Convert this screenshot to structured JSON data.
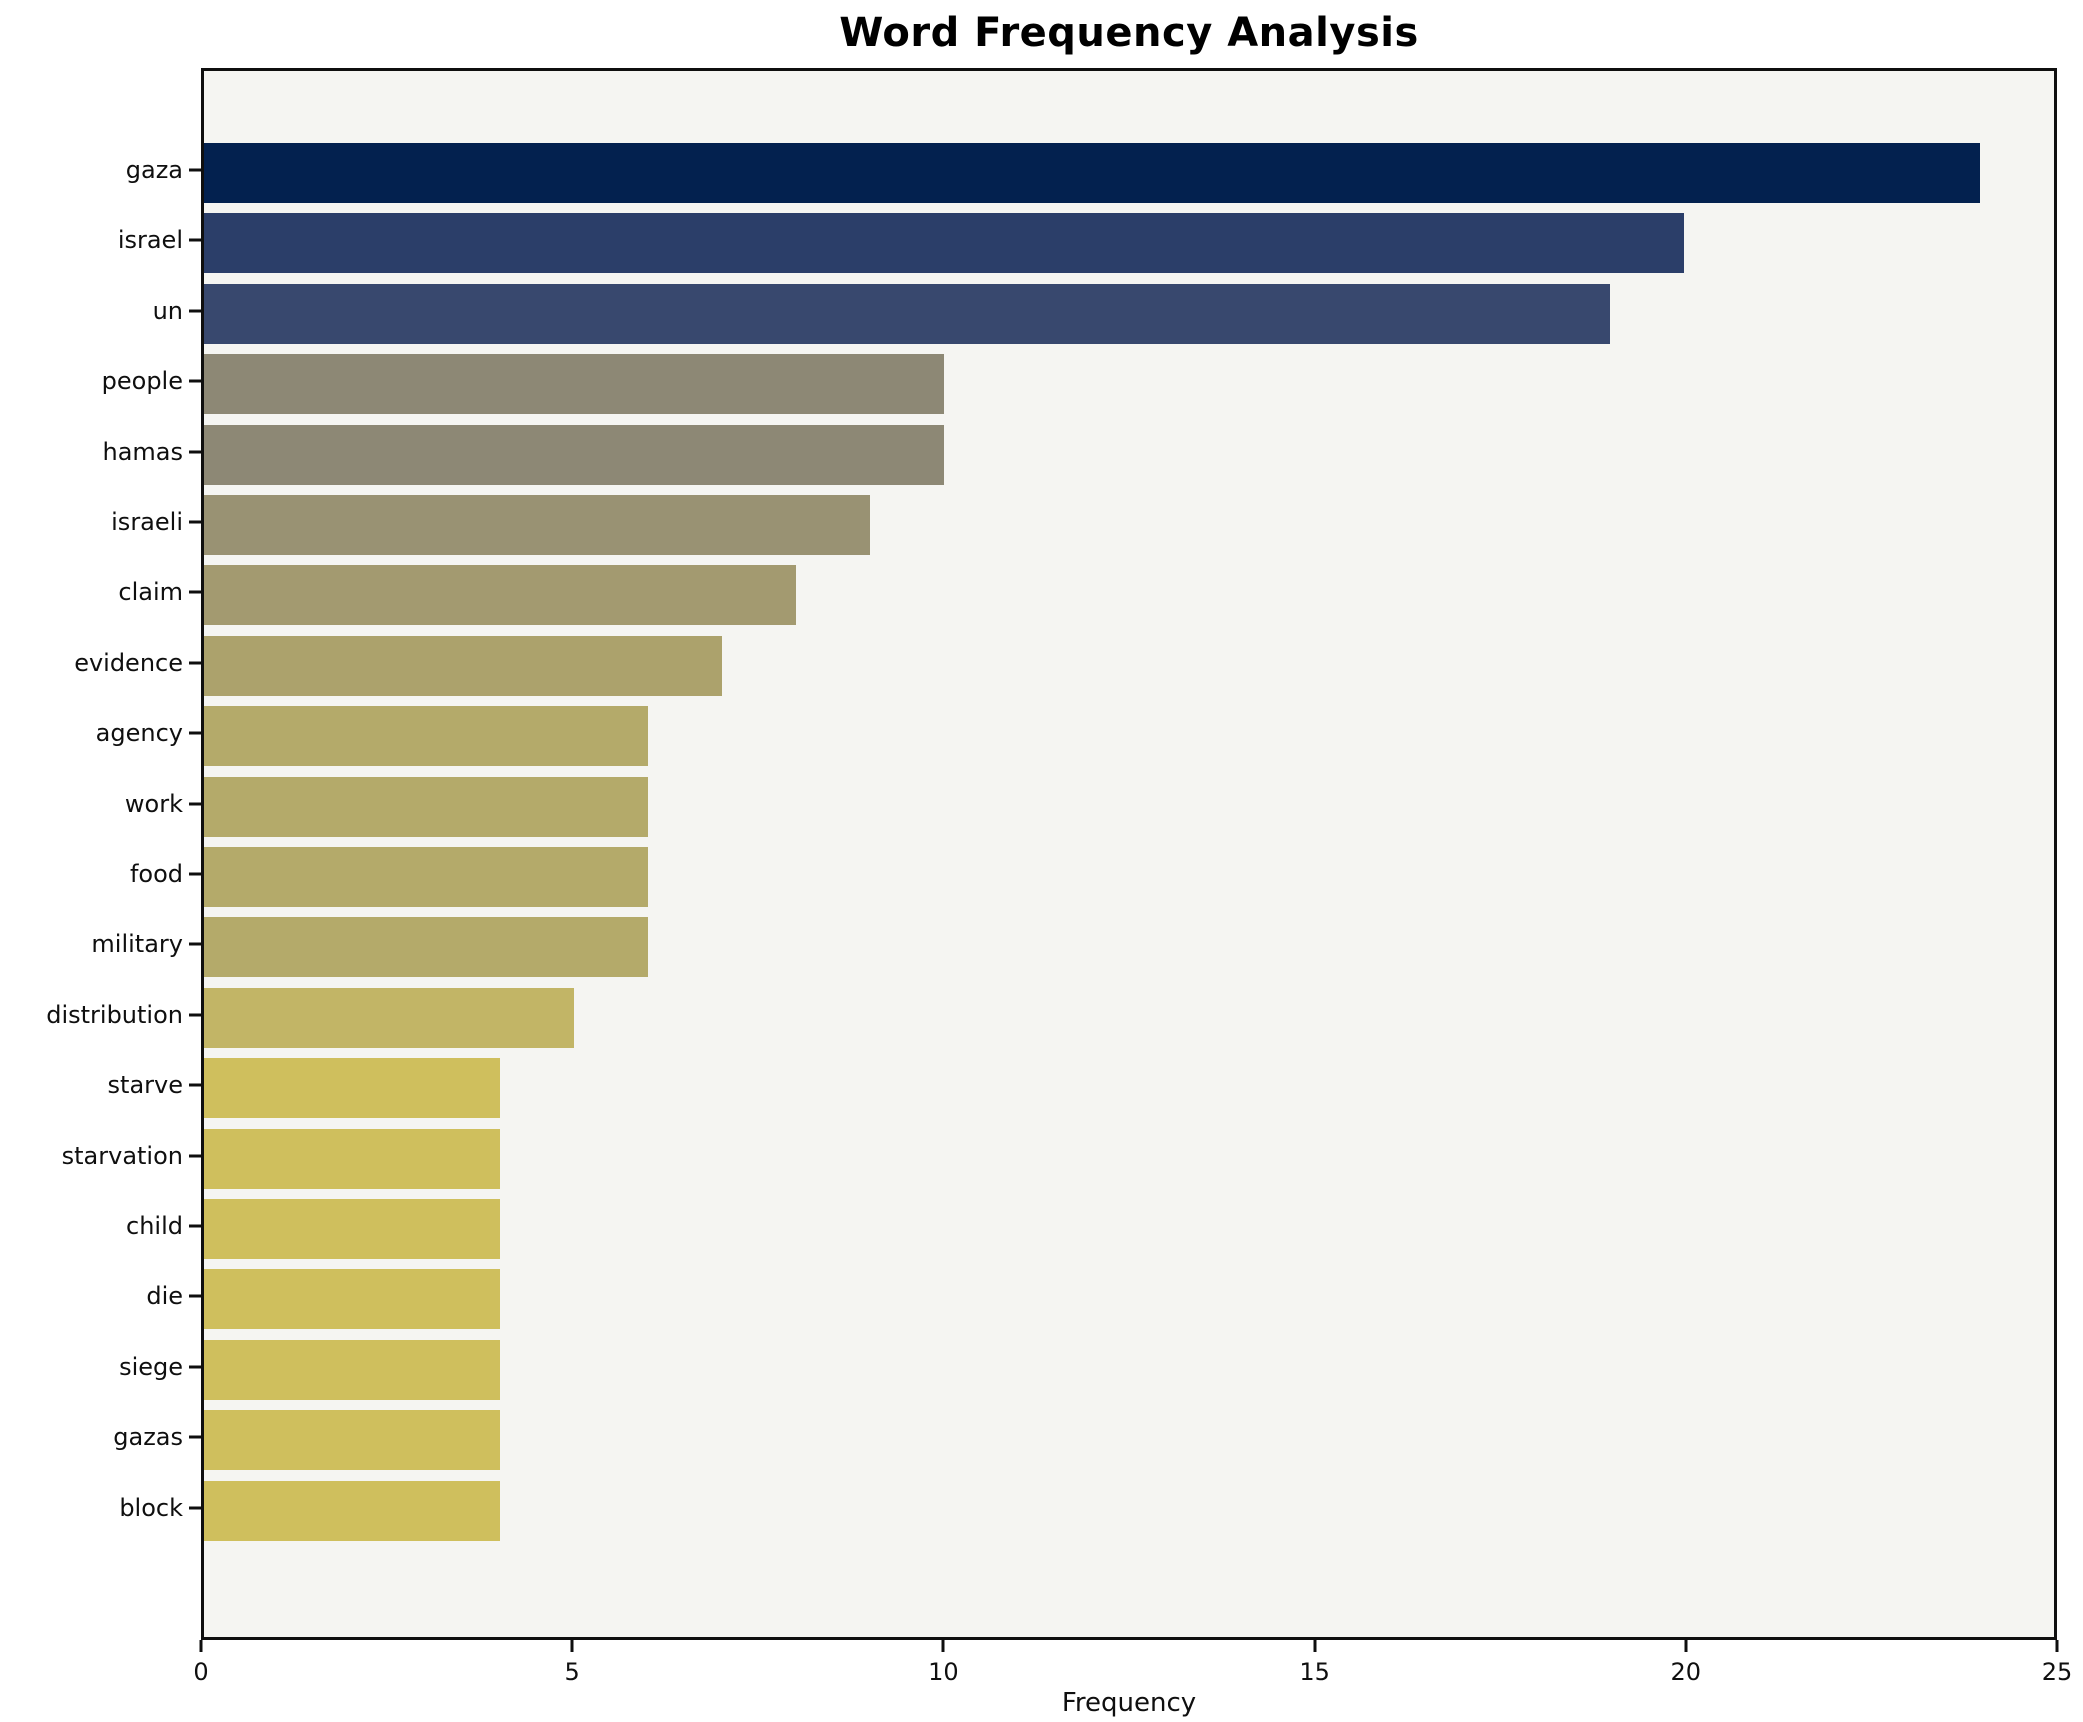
{
  "chart_data": {
    "type": "bar",
    "orientation": "horizontal",
    "title": "Word Frequency Analysis",
    "xlabel": "Frequency",
    "ylabel": "",
    "xlim": [
      0,
      25
    ],
    "xticks": [
      0,
      5,
      10,
      15,
      20,
      25
    ],
    "grid": false,
    "legend": "none",
    "plot_background": "#f5f5f2",
    "frame_color": "#0f0f0f",
    "categories": [
      "gaza",
      "israel",
      "un",
      "people",
      "hamas",
      "israeli",
      "claim",
      "evidence",
      "agency",
      "work",
      "food",
      "military",
      "distribution",
      "starve",
      "starvation",
      "child",
      "die",
      "siege",
      "gazas",
      "block"
    ],
    "values": [
      24,
      20,
      19,
      10,
      10,
      9,
      8,
      7,
      6,
      6,
      6,
      6,
      5,
      4,
      4,
      4,
      4,
      4,
      4,
      4
    ],
    "bar_colors": [
      "#03214f",
      "#2b3e69",
      "#38486e",
      "#8d8875",
      "#8d8875",
      "#999273",
      "#a39a70",
      "#aca26c",
      "#b4aa6a",
      "#b4aa6a",
      "#b4aa6a",
      "#b4aa6a",
      "#c2b566",
      "#cfbf5d",
      "#cfbf5d",
      "#cfbf5d",
      "#cfbf5d",
      "#cfbf5d",
      "#cfbf5d",
      "#cfbf5d"
    ]
  }
}
